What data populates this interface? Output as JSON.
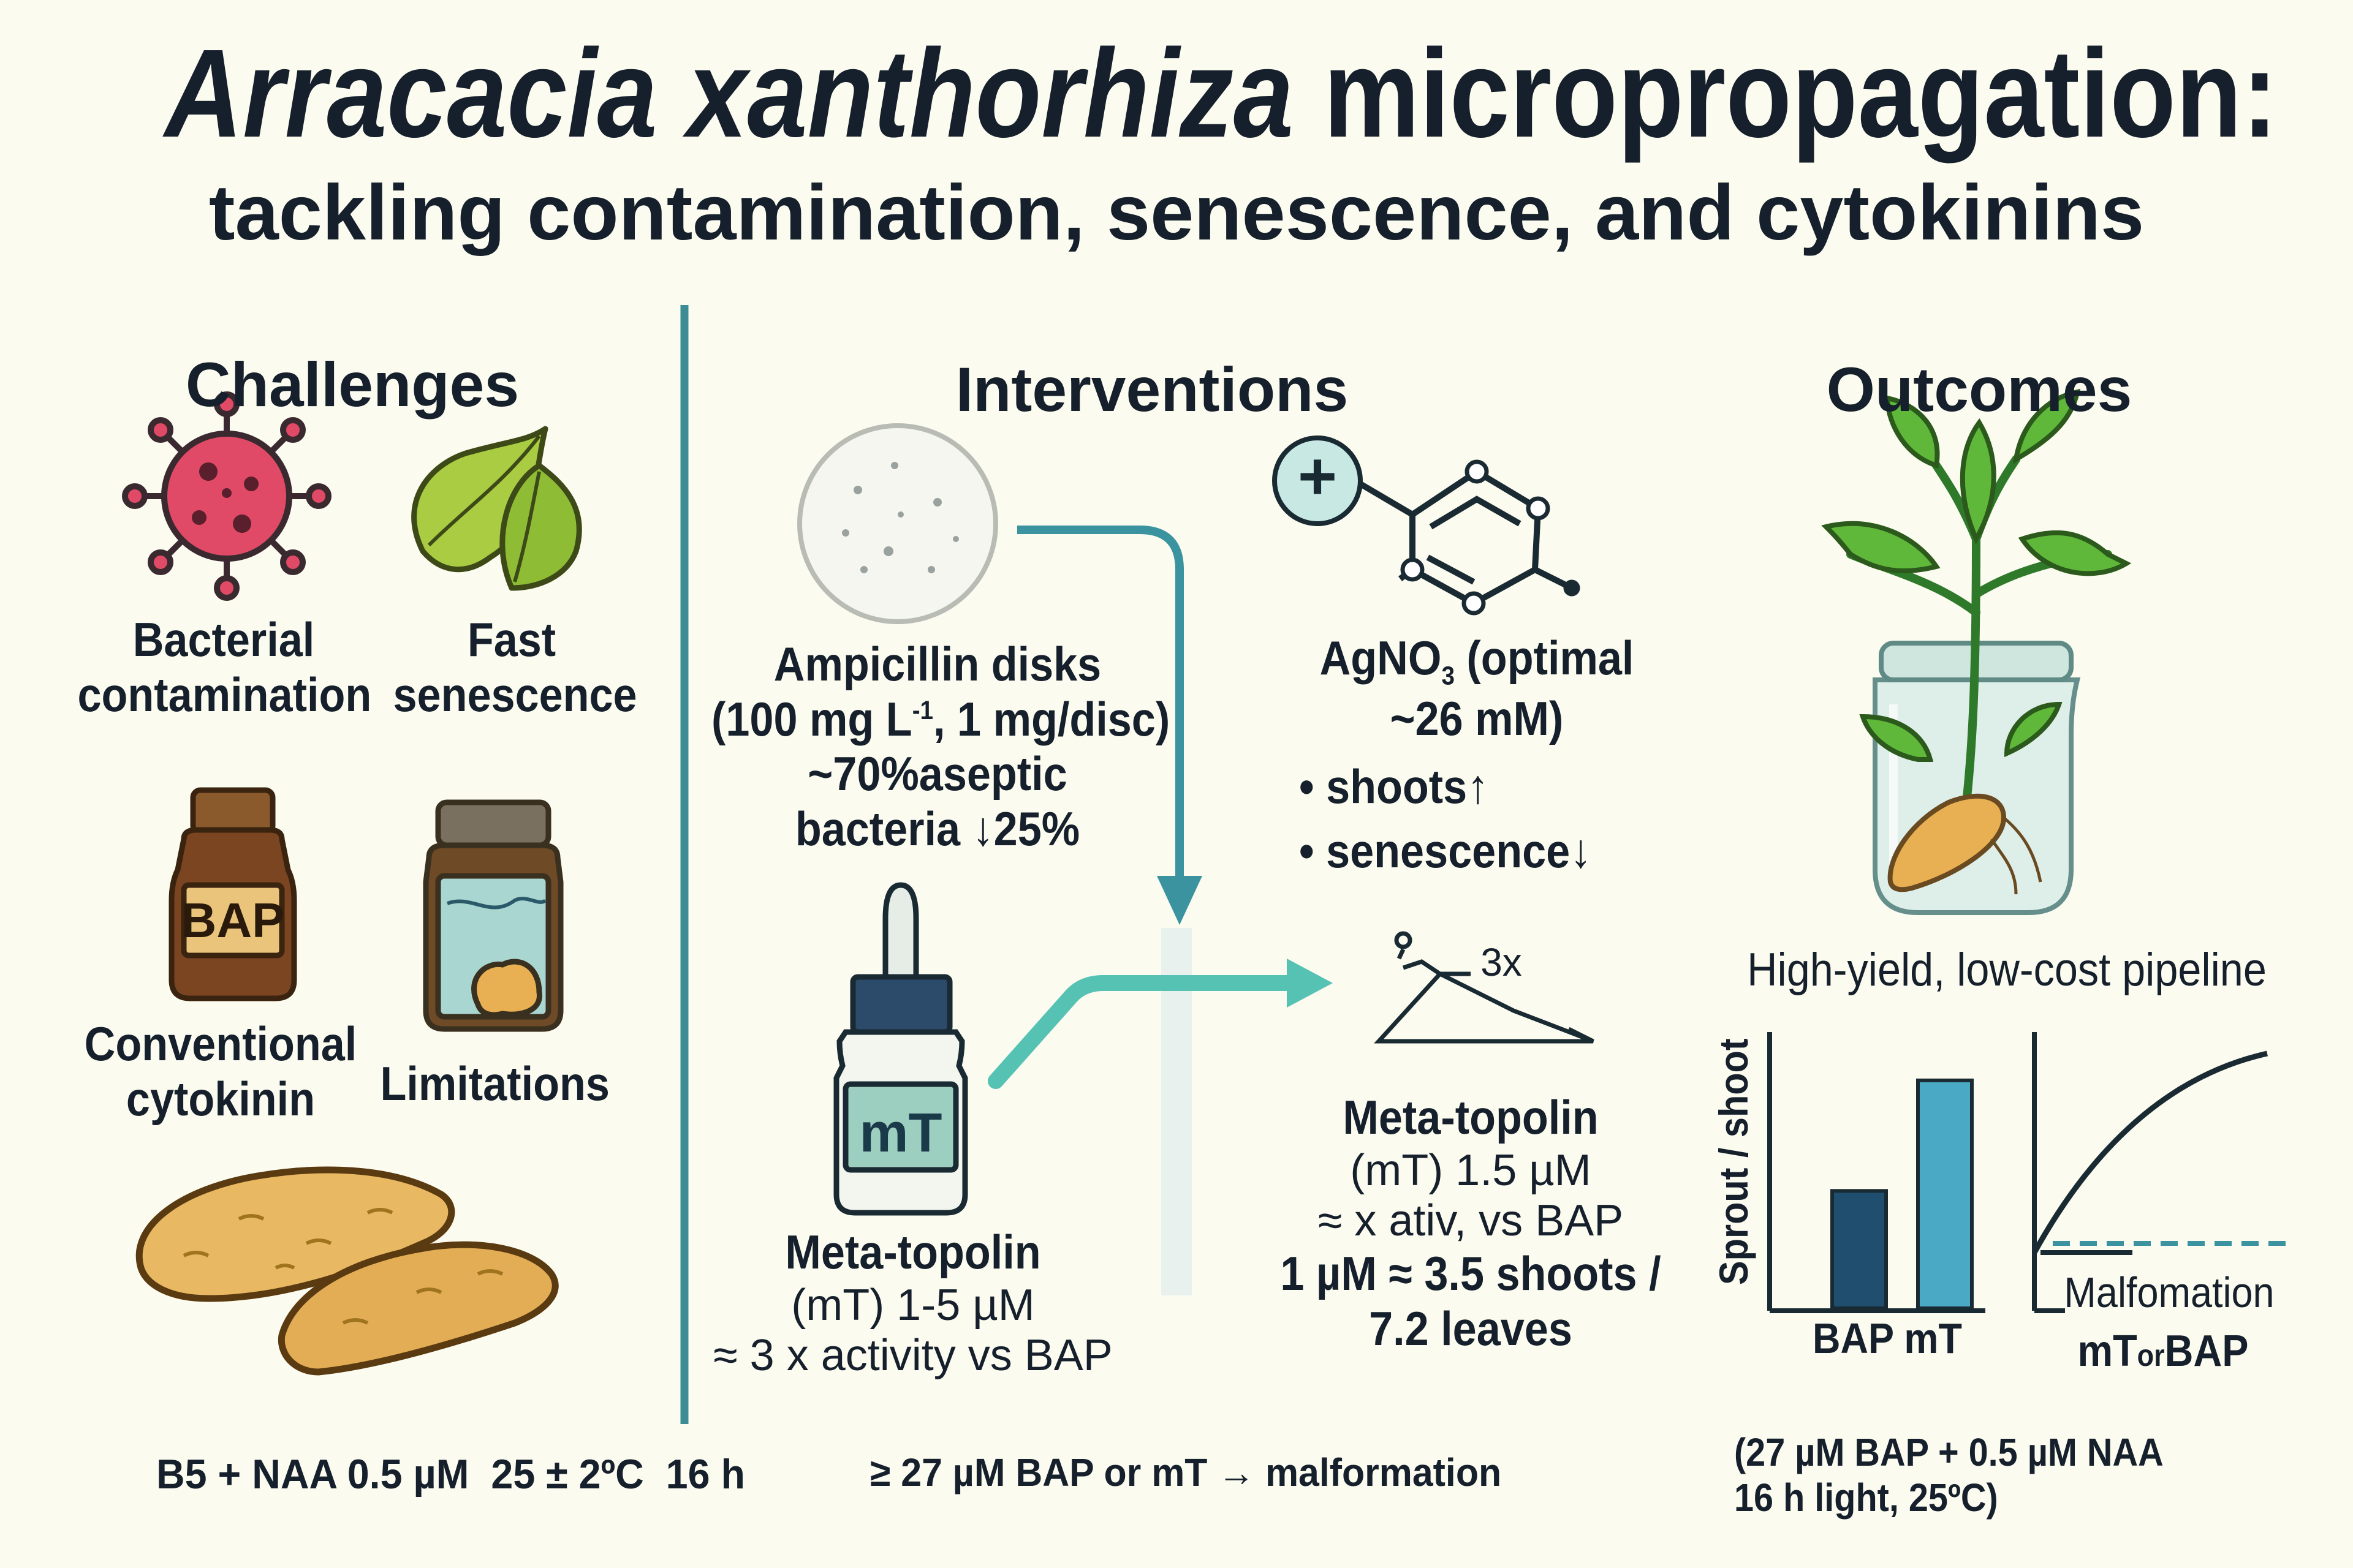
{
  "title": {
    "italic": "Arracacia xanthorhiza",
    "rest": " micropropagation:",
    "subtitle": "tackling contamination, senescence, and cytokinins"
  },
  "challenges": {
    "heading": "Challenges",
    "bacterial": [
      "Bacterial",
      "contamination"
    ],
    "senescence": [
      "Fast",
      "senescence"
    ],
    "bap_label": "BAP",
    "cytokinin": [
      "Conventional",
      "cytokinin"
    ],
    "limitations": "Limitations"
  },
  "interventions": {
    "heading": "Interventions",
    "ampicillin": {
      "line1": "Ampicillin disks",
      "line2a": "(100 mg L",
      "line2sup": "-1",
      "line2b": ", 1 mg/disc)",
      "line3": "~70%aseptic",
      "line4": "bacteria ↓25%"
    },
    "agno3": {
      "plus": "+",
      "line1a": "AgNO",
      "line1sub": "3",
      "line1b": " (optimal",
      "line2": "~26 mM)",
      "bullet1": "• shoots↑",
      "bullet2": "• senescence↓"
    },
    "mt_label": "mT",
    "metatopolin_left": {
      "line1": "Meta-topolin",
      "line2": "(mT) 1-5 µM",
      "line3": "≈ 3 x activity vs BAP"
    },
    "threex": "3x",
    "metatopolin_right": {
      "line1": "Meta-topolin",
      "line2": "(mT) 1.5 µM",
      "line3": "≈ x ativ, vs BAP",
      "line4": "1 µM ≈ 3.5 shoots /",
      "line5": "7.2 leaves"
    }
  },
  "outcomes": {
    "heading": "Outcomes",
    "pipeline": "High-yield, low-cost pipeline",
    "ylabel": "Sprout / shoot",
    "bar_labels": "BAP mT",
    "malformation": "Malfomation",
    "mt_or_bap_a": "mT",
    "mt_or_bap_b": "or",
    "mt_or_bap_c": "BAP",
    "conditions_line1": "(27 µM BAP + 0.5 µM NAA",
    "conditions_line2": "16 h light, 25ºC)"
  },
  "footer": {
    "media": "B5 + NAA 0.5 µM  25 ± 2ºC  16 h",
    "threshold": "≥ 27 µM BAP or mT → malformation"
  },
  "chart_data": {
    "type": "bar",
    "categories": [
      "BAP",
      "mT"
    ],
    "values": [
      1.7,
      3.3
    ],
    "ylabel": "Sprout / shoot",
    "ylim": [
      0,
      4
    ],
    "grid": false,
    "colors": [
      "#1f4e6e",
      "#4aa9c4"
    ]
  },
  "colors": {
    "divider": "#3c8c96",
    "arrow": "#3a939e",
    "arrow_light": "#56c2b4",
    "bar_bap": "#1f4e6e",
    "bar_mt": "#4aa9c4",
    "bacteria": "#e14a66",
    "leaf": "#9bc93c",
    "bottle_brown": "#7a4520",
    "label_tan": "#e9c47a",
    "root": "#e8b052"
  }
}
